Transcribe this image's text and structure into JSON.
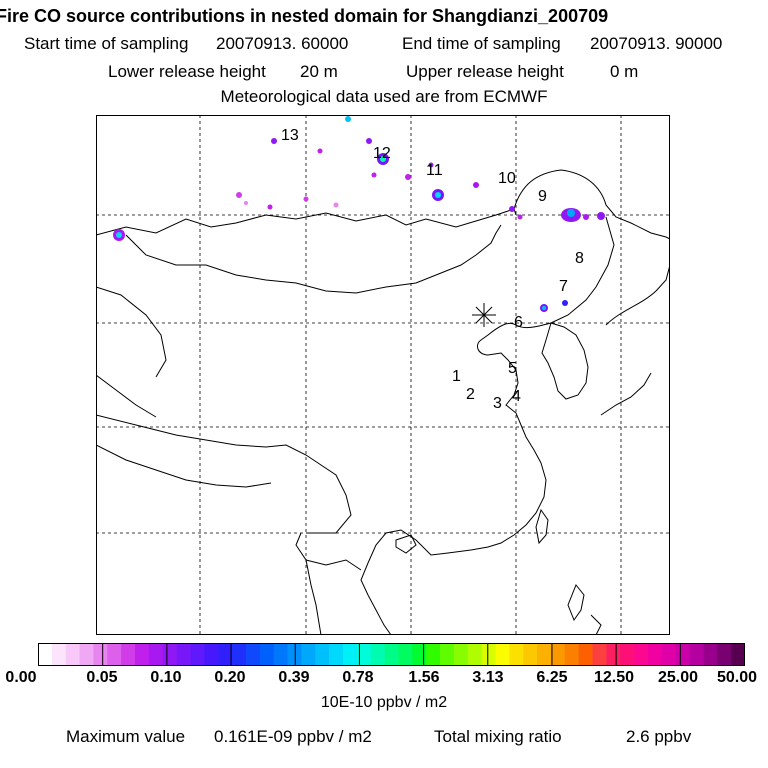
{
  "header": {
    "title": "Fire CO source contributions in nested domain for Shangdianzi_200709",
    "start_label": "Start time of sampling",
    "start_value": "20070913. 60000",
    "end_label": "End time of sampling",
    "end_value": "20070913. 90000",
    "lower_label": "Lower release height",
    "lower_value": "20 m",
    "upper_label": "Upper release height",
    "upper_value": "0 m",
    "met_note": "Meteorological data used are from ECMWF"
  },
  "map": {
    "receptor_symbol": "✳",
    "source_labels": [
      "1",
      "2",
      "3",
      "4",
      "5",
      "6",
      "7",
      "8",
      "9",
      "10",
      "11",
      "12",
      "13"
    ]
  },
  "colorbar": {
    "ticks": [
      "0.00",
      "0.05",
      "0.10",
      "0.20",
      "0.39",
      "0.78",
      "1.56",
      "3.13",
      "6.25",
      "12.50",
      "25.00",
      "50.00"
    ],
    "unit": "10E-10 ppbv / m2",
    "colors": [
      "#ffffff",
      "#fce4fc",
      "#f8c8f8",
      "#f0a8f4",
      "#e884f0",
      "#dc60ec",
      "#d03ce8",
      "#c020ec",
      "#a818f0",
      "#9018f4",
      "#7818f8",
      "#6018fc",
      "#4818fc",
      "#3020fc",
      "#2030fc",
      "#1048fc",
      "#0060fc",
      "#0078fc",
      "#0090fc",
      "#00a8fc",
      "#00c0fc",
      "#00d8fc",
      "#00f0f8",
      "#00fcd8",
      "#00fcb0",
      "#00fc88",
      "#00fc60",
      "#00fc30",
      "#30fc00",
      "#60fc00",
      "#88fc00",
      "#b0fc00",
      "#d8fc00",
      "#fcfc00",
      "#fce000",
      "#fcc800",
      "#fcb000",
      "#fc9800",
      "#fc8000",
      "#fc6000",
      "#fc4040",
      "#fc2060",
      "#fc1078",
      "#fc0890",
      "#f000a0",
      "#e000a8",
      "#cc00a8",
      "#b400a0",
      "#98008c",
      "#780070",
      "#580050"
    ],
    "max_label": "Maximum value",
    "max_value": "0.161E-09 ppbv / m2",
    "total_label": "Total mixing ratio",
    "total_value": "2.6 ppbv"
  }
}
